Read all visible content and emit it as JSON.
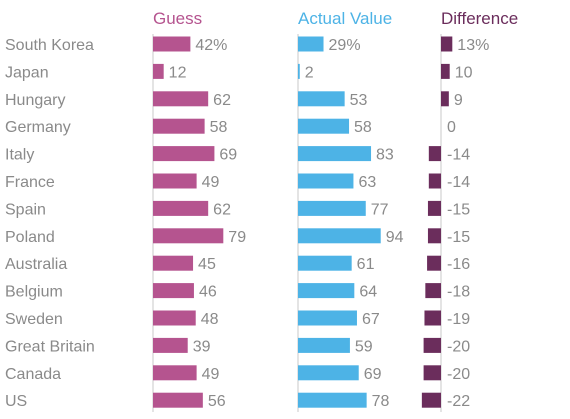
{
  "chart_data": {
    "type": "bar",
    "colors": {
      "guess": "#b5548f",
      "actual": "#4db3e6",
      "difference": "#6b2d5c",
      "text": "#8a8a8a"
    },
    "categories": [
      "South Korea",
      "Japan",
      "Hungary",
      "Germany",
      "Italy",
      "France",
      "Spain",
      "Poland",
      "Australia",
      "Belgium",
      "Sweden",
      "Great Britain",
      "Canada",
      "US"
    ],
    "series": [
      {
        "name": "Guess",
        "values": [
          42,
          12,
          62,
          58,
          69,
          49,
          62,
          79,
          45,
          46,
          48,
          39,
          49,
          56
        ],
        "labels": [
          "42%",
          "12",
          "62",
          "58",
          "69",
          "49",
          "62",
          "79",
          "45",
          "46",
          "48",
          "39",
          "49",
          "56"
        ]
      },
      {
        "name": "Actual Value",
        "values": [
          29,
          2,
          53,
          58,
          83,
          63,
          77,
          94,
          61,
          64,
          67,
          59,
          69,
          78
        ],
        "labels": [
          "29%",
          "2",
          "53",
          "58",
          "83",
          "63",
          "77",
          "94",
          "61",
          "64",
          "67",
          "59",
          "69",
          "78"
        ]
      },
      {
        "name": "Difference",
        "values": [
          13,
          10,
          9,
          0,
          -14,
          -14,
          -15,
          -15,
          -16,
          -18,
          -19,
          -20,
          -20,
          -22
        ],
        "labels": [
          "13%",
          "10",
          "9",
          "0",
          "-14",
          "-14",
          "-15",
          "-15",
          "-16",
          "-18",
          "-19",
          "-20",
          "-20",
          "-22"
        ]
      }
    ]
  }
}
